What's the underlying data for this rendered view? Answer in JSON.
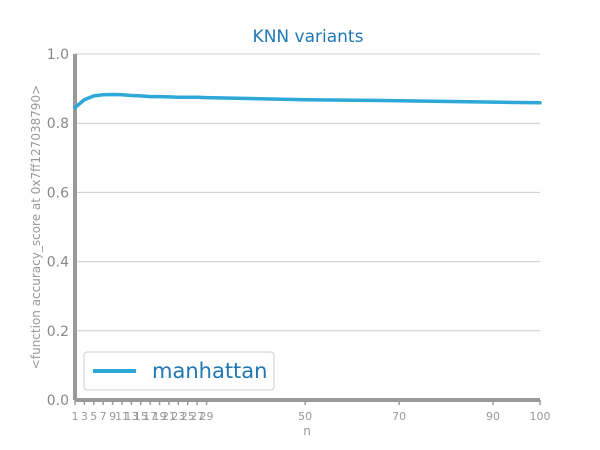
{
  "chart_data": {
    "type": "line",
    "title": "KNN variants",
    "xlabel": "n",
    "ylabel": "<function accuracy_score at 0x7ff127038790>",
    "xlim": [
      1,
      100
    ],
    "ylim": [
      0.0,
      1.0
    ],
    "x_ticks": [
      1,
      3,
      5,
      7,
      9,
      11,
      13,
      15,
      17,
      19,
      21,
      23,
      25,
      27,
      29,
      50,
      70,
      90,
      100
    ],
    "x_tick_labels": [
      "1",
      "3",
      "5",
      "7",
      "9",
      "11",
      "13",
      "15",
      "17",
      "19",
      "21",
      "23",
      "25",
      "27",
      "29",
      "50",
      "70",
      "90",
      "100"
    ],
    "y_ticks": [
      0.0,
      0.2,
      0.4,
      0.6,
      0.8,
      1.0
    ],
    "y_tick_labels": [
      "0.0",
      "0.2",
      "0.4",
      "0.6",
      "0.8",
      "1.0"
    ],
    "grid": "horizontal",
    "legend_position": "bottom-left",
    "colors": {
      "series": "#2ea8d8",
      "title": "#1f77b4",
      "grid": "#cccccc",
      "spine": "#999999"
    },
    "series": [
      {
        "name": "manhattan",
        "x": [
          1,
          3,
          5,
          7,
          9,
          11,
          13,
          15,
          17,
          19,
          21,
          23,
          25,
          27,
          29,
          50,
          70,
          90,
          100
        ],
        "values": [
          0.845,
          0.868,
          0.879,
          0.882,
          0.883,
          0.882,
          0.88,
          0.879,
          0.877,
          0.877,
          0.876,
          0.875,
          0.875,
          0.875,
          0.874,
          0.868,
          0.865,
          0.861,
          0.859
        ]
      }
    ]
  }
}
